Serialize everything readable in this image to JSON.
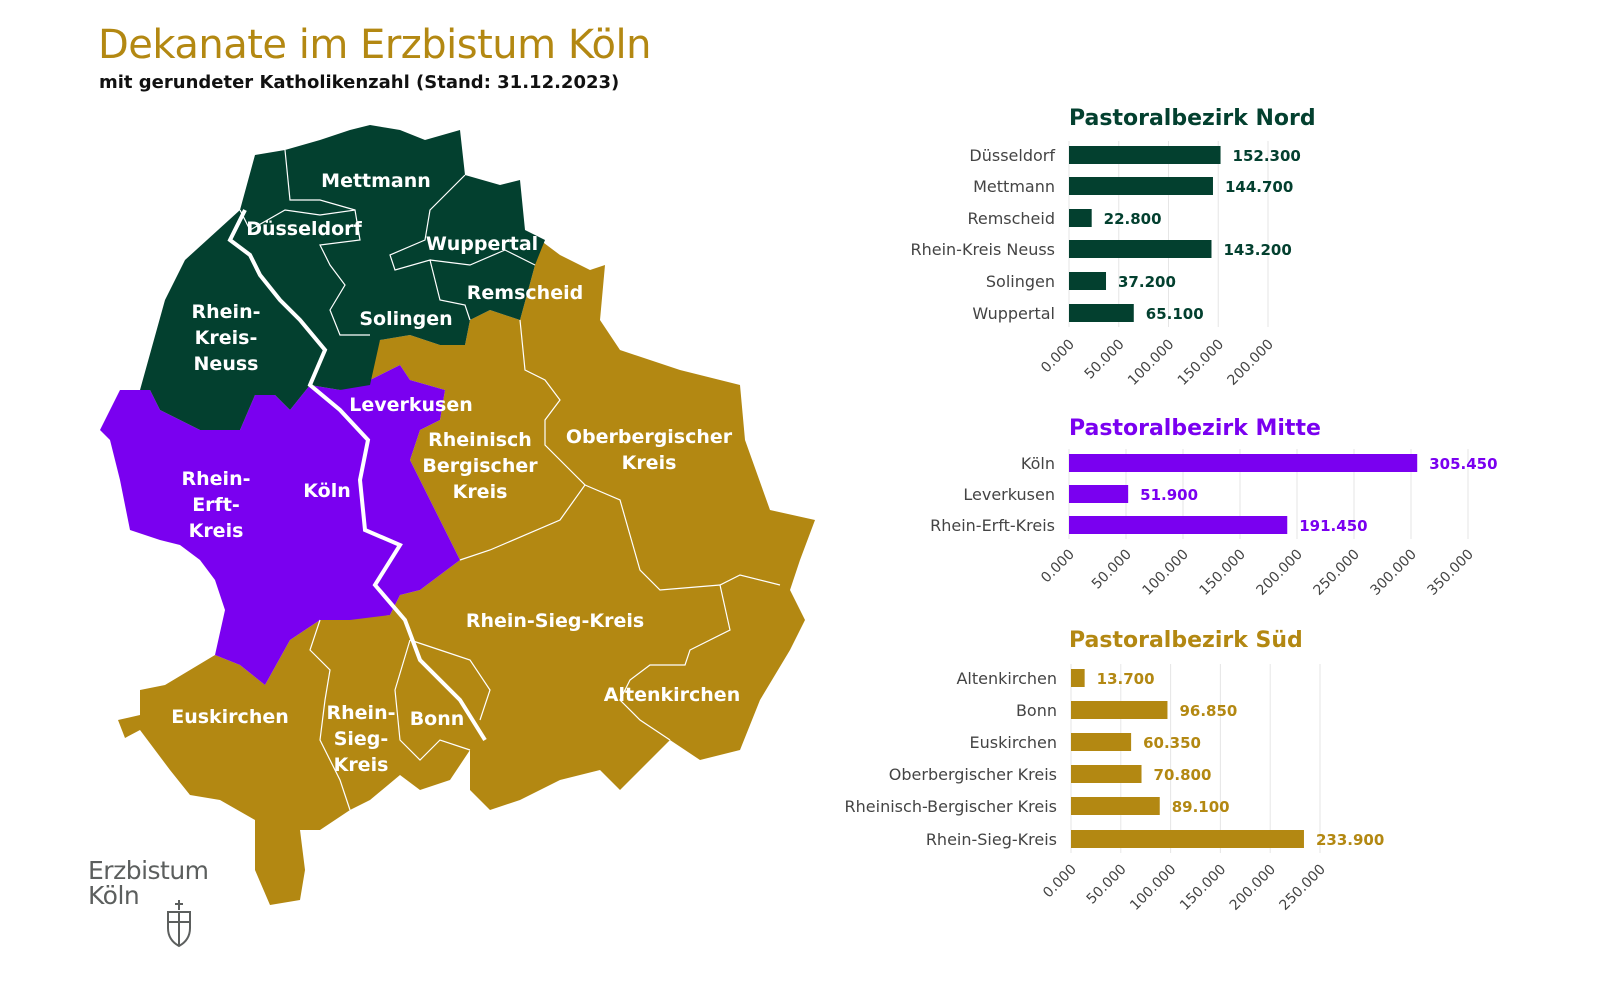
{
  "header": {
    "title": "Dekanate im Erzbistum Köln",
    "subtitle": "mit gerundeter Katholikenzahl (Stand: 31.12.2023)"
  },
  "colors": {
    "nord": "#03402f",
    "mitte": "#7a00f0",
    "sued": "#b38812"
  },
  "map": {
    "labels": [
      "Mettmann",
      "Düsseldorf",
      "Wuppertal",
      "Remscheid",
      "Rhein-\nKreis-\nNeuss",
      "Solingen",
      "Leverkusen",
      "Rheinisch\nBergischer\nKreis",
      "Oberbergischer\nKreis",
      "Rhein-\nErft-\nKreis",
      "Köln",
      "Rhein-Sieg-Kreis",
      "Altenkirchen",
      "Euskirchen",
      "Rhein-\nSieg-\nKreis",
      "Bonn"
    ]
  },
  "logo": {
    "line1": "Erzbistum",
    "line2": "Köln"
  },
  "chart_data": [
    {
      "type": "bar",
      "orientation": "horizontal",
      "title": "Pastoralbezirk Nord",
      "categories": [
        "Düsseldorf",
        "Mettmann",
        "Remscheid",
        "Rhein-Kreis Neuss",
        "Solingen",
        "Wuppertal"
      ],
      "values": [
        152300,
        144700,
        22800,
        143200,
        37200,
        65100
      ],
      "value_labels": [
        "152.300",
        "144.700",
        "22.800",
        "143.200",
        "37.200",
        "65.100"
      ],
      "xlim": [
        0,
        200000
      ],
      "ticks": [
        "0.000",
        "50.000",
        "100.000",
        "150.000",
        "200.000"
      ],
      "color": "#03402f",
      "grid": true
    },
    {
      "type": "bar",
      "orientation": "horizontal",
      "title": "Pastoralbezirk Mitte",
      "categories": [
        "Köln",
        "Leverkusen",
        "Rhein-Erft-Kreis"
      ],
      "values": [
        305450,
        51900,
        191450
      ],
      "value_labels": [
        "305.450",
        "51.900",
        "191.450"
      ],
      "xlim": [
        0,
        350000
      ],
      "ticks": [
        "0.000",
        "50.000",
        "100.000",
        "150.000",
        "200.000",
        "250.000",
        "300.000",
        "350.000"
      ],
      "color": "#7a00f0",
      "grid": true
    },
    {
      "type": "bar",
      "orientation": "horizontal",
      "title": "Pastoralbezirk Süd",
      "categories": [
        "Altenkirchen",
        "Bonn",
        "Euskirchen",
        "Oberbergischer Kreis",
        "Rheinisch-Bergischer Kreis",
        "Rhein-Sieg-Kreis"
      ],
      "values": [
        13700,
        96850,
        60350,
        70800,
        89100,
        233900
      ],
      "value_labels": [
        "13.700",
        "96.850",
        "60.350",
        "70.800",
        "89.100",
        "233.900"
      ],
      "xlim": [
        0,
        250000
      ],
      "ticks": [
        "0.000",
        "50.000",
        "100.000",
        "150.000",
        "200.000",
        "250.000"
      ],
      "color": "#b38812",
      "grid": true
    }
  ]
}
